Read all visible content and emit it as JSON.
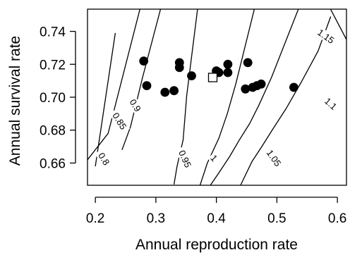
{
  "chart_data": {
    "type": "scatter",
    "xlabel": "Annual reproduction rate",
    "ylabel": "Annual survival rate",
    "xlim": [
      0.187,
      0.615
    ],
    "ylim": [
      0.6465,
      0.7535
    ],
    "x_ticks": [
      0.2,
      0.3,
      0.4,
      0.5,
      0.6
    ],
    "x_tick_labels": [
      "0.2",
      "0.3",
      "0.4",
      "0.5",
      "0.6"
    ],
    "y_ticks": [
      0.66,
      0.68,
      0.7,
      0.72,
      0.74
    ],
    "y_tick_labels": [
      "0.66",
      "0.68",
      "0.70",
      "0.72",
      "0.74"
    ],
    "grid": false,
    "legend": "none",
    "contours": [
      {
        "level": "0.8",
        "label": "0.8",
        "points": [
          [
            0.233,
            0.739
          ],
          [
            0.2,
            0.658
          ]
        ]
      },
      {
        "level": "0.85",
        "label": "0.85",
        "points": [
          [
            0.274,
            0.754
          ],
          [
            0.221,
            0.678
          ],
          [
            0.187,
            0.662
          ]
        ]
      },
      {
        "level": "0.9",
        "label": "0.9",
        "points": [
          [
            0.308,
            0.754
          ],
          [
            0.278,
            0.712
          ],
          [
            0.258,
            0.682
          ],
          [
            0.244,
            0.668
          ]
        ]
      },
      {
        "level": "0.95",
        "label": "0.95",
        "points": [
          [
            0.369,
            0.754
          ],
          [
            0.351,
            0.701
          ],
          [
            0.345,
            0.674
          ],
          [
            0.335,
            0.658
          ],
          [
            0.33,
            0.647
          ]
        ]
      },
      {
        "level": "1",
        "label": "1",
        "points": [
          [
            0.463,
            0.754
          ],
          [
            0.432,
            0.708
          ],
          [
            0.418,
            0.69
          ],
          [
            0.404,
            0.675
          ],
          [
            0.385,
            0.66
          ],
          [
            0.373,
            0.6465
          ]
        ]
      },
      {
        "level": "1.05",
        "label": "1.05",
        "points": [
          [
            0.536,
            0.754
          ],
          [
            0.491,
            0.712
          ],
          [
            0.47,
            0.695
          ],
          [
            0.455,
            0.684
          ],
          [
            0.438,
            0.674
          ],
          [
            0.422,
            0.664
          ],
          [
            0.404,
            0.654
          ],
          [
            0.39,
            0.6465
          ]
        ]
      },
      {
        "level": "1.1",
        "label": "1.1",
        "points": [
          [
            0.589,
            0.749
          ],
          [
            0.568,
            0.728
          ],
          [
            0.54,
            0.709
          ],
          [
            0.515,
            0.693
          ],
          [
            0.494,
            0.681
          ],
          [
            0.475,
            0.67
          ],
          [
            0.459,
            0.661
          ],
          [
            0.44,
            0.6465
          ]
        ]
      },
      {
        "level": "1.15",
        "label": "1.15",
        "points": [
          [
            0.588,
            0.754
          ],
          [
            0.615,
            0.735
          ],
          [
            0.615,
            0.735
          ]
        ]
      }
    ],
    "points": [
      {
        "x": 0.28,
        "y": 0.722
      },
      {
        "x": 0.285,
        "y": 0.707
      },
      {
        "x": 0.315,
        "y": 0.703
      },
      {
        "x": 0.33,
        "y": 0.704
      },
      {
        "x": 0.339,
        "y": 0.721
      },
      {
        "x": 0.339,
        "y": 0.718
      },
      {
        "x": 0.359,
        "y": 0.713
      },
      {
        "x": 0.4,
        "y": 0.716
      },
      {
        "x": 0.404,
        "y": 0.715
      },
      {
        "x": 0.419,
        "y": 0.72
      },
      {
        "x": 0.419,
        "y": 0.715
      },
      {
        "x": 0.448,
        "y": 0.705
      },
      {
        "x": 0.452,
        "y": 0.721
      },
      {
        "x": 0.46,
        "y": 0.706
      },
      {
        "x": 0.467,
        "y": 0.707
      },
      {
        "x": 0.474,
        "y": 0.708
      },
      {
        "x": 0.528,
        "y": 0.706
      }
    ],
    "highlight_point": {
      "x": 0.394,
      "y": 0.712,
      "marker": "open-square"
    }
  }
}
